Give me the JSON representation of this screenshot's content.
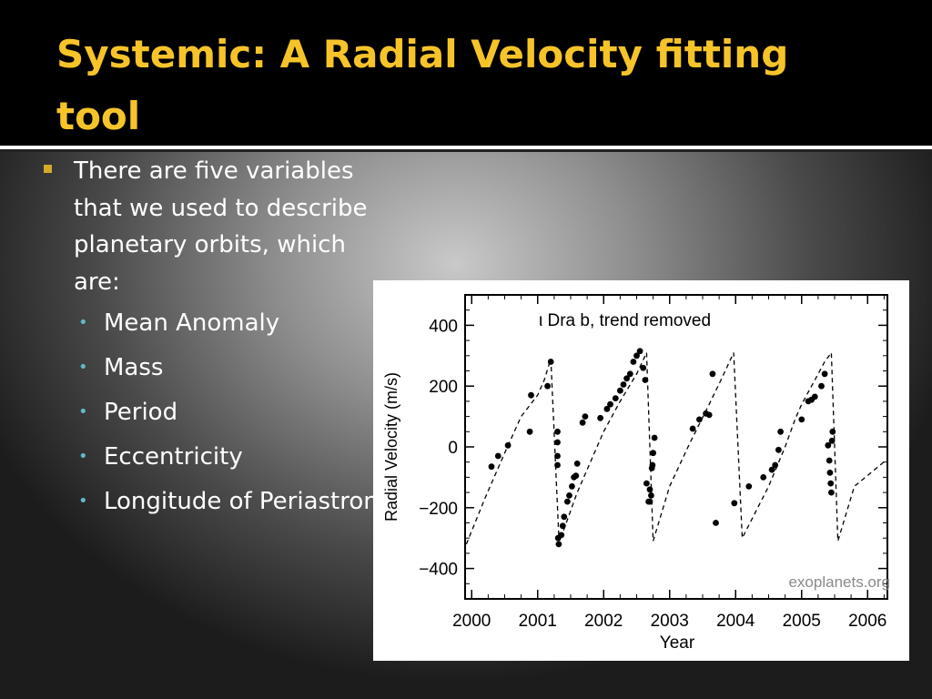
{
  "slide": {
    "title": "Systemic: A Radial Velocity fitting tool",
    "bullet": "There are five variables that we used to describe planetary orbits, which are:",
    "sub_items": [
      " Mean Anomaly",
      "Mass",
      " Period",
      "Eccentricity",
      "Longitude of Periastron"
    ]
  },
  "colors": {
    "title": "#f6c429",
    "bullet_square": "#d5a92a",
    "sub_bullet": "#64b7c6",
    "title_bar": "#000000"
  },
  "chart_data": {
    "type": "scatter",
    "title": "ι Dra b, trend removed",
    "xlabel": "Year",
    "ylabel": "Radial Velocity  (m/s)",
    "xlim": [
      1999.9,
      2006.3
    ],
    "ylim": [
      -500,
      500
    ],
    "x_ticks": [
      "2000",
      "2001",
      "2002",
      "2003",
      "2004",
      "2005",
      "2006"
    ],
    "y_ticks": [
      "400",
      "200",
      "0",
      "−200",
      "−400"
    ],
    "watermark": "exoplanets.org",
    "series": [
      {
        "style": "dashed-fit",
        "x": [
          1999.92,
          2000.2,
          2000.5,
          2000.75,
          2001.0,
          2001.1,
          2001.2,
          2001.32,
          2001.35,
          2001.6,
          2002.0,
          2002.25,
          2002.5,
          2002.65,
          2002.75,
          2003.0,
          2003.3,
          2003.6,
          2003.8,
          2003.97,
          2004.1,
          2004.5,
          2004.75,
          2004.9,
          2005.0,
          2005.2,
          2005.35,
          2005.45,
          2005.55,
          2005.8,
          2006.3
        ],
        "y": [
          -320,
          -170,
          -20,
          100,
          170,
          220,
          290,
          -290,
          -300,
          -150,
          50,
          150,
          240,
          310,
          -310,
          -130,
          10,
          140,
          230,
          310,
          -300,
          -130,
          0,
          90,
          140,
          220,
          280,
          310,
          -310,
          -130,
          -40
        ]
      },
      {
        "style": "points",
        "x": [
          2000.3,
          2000.4,
          2000.55,
          2000.88,
          2000.9,
          2001.15,
          2001.2,
          2001.3,
          2001.3,
          2001.3,
          2001.3,
          2001.31,
          2001.32,
          2001.36,
          2001.38,
          2001.4,
          2001.45,
          2001.48,
          2001.52,
          2001.55,
          2001.58,
          2001.6,
          2001.68,
          2001.72,
          2001.95,
          2002.05,
          2002.1,
          2002.18,
          2002.25,
          2002.3,
          2002.35,
          2002.4,
          2002.45,
          2002.5,
          2002.55,
          2002.6,
          2002.63,
          2002.65,
          2002.68,
          2002.7,
          2002.7,
          2002.72,
          2002.73,
          2002.74,
          2002.75,
          2002.77,
          2003.35,
          2003.45,
          2003.55,
          2003.6,
          2003.65,
          2003.7,
          2003.98,
          2004.2,
          2004.42,
          2004.55,
          2004.6,
          2004.65,
          2004.68,
          2005.0,
          2005.1,
          2005.15,
          2005.2,
          2005.3,
          2005.35,
          2005.4,
          2005.42,
          2005.43,
          2005.44,
          2005.45,
          2005.46,
          2005.47
        ],
        "y": [
          -65,
          -30,
          5,
          50,
          170,
          200,
          280,
          50,
          15,
          -30,
          -60,
          -300,
          -320,
          -290,
          -260,
          -230,
          -180,
          -160,
          -130,
          -100,
          -95,
          -55,
          80,
          100,
          95,
          125,
          140,
          160,
          185,
          205,
          225,
          240,
          280,
          300,
          315,
          260,
          220,
          -120,
          -180,
          -140,
          -180,
          -160,
          -70,
          -60,
          -20,
          30,
          60,
          90,
          110,
          105,
          240,
          -250,
          -185,
          -130,
          -100,
          -75,
          -60,
          -10,
          50,
          90,
          150,
          155,
          165,
          200,
          240,
          5,
          -45,
          -85,
          -120,
          -150,
          20,
          50
        ]
      }
    ]
  }
}
